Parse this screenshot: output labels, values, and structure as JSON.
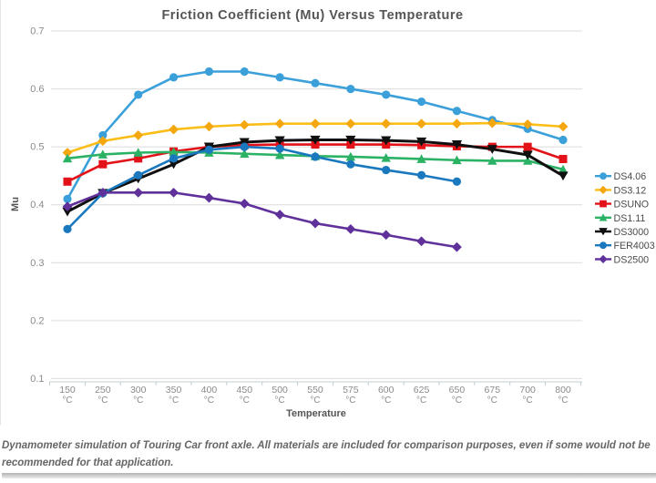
{
  "chart_data": {
    "type": "line",
    "title": "Friction Coefficient (Mu) Versus Temperature",
    "xlabel": "Temperature",
    "ylabel": "Mu",
    "ylim": [
      0.1,
      0.7
    ],
    "yticks": [
      "0.7",
      "0.6",
      "0.5",
      "0.4",
      "0.3",
      "0.2",
      "0.1"
    ],
    "grid": "horizontal",
    "legend_position": "right",
    "categories": [
      "150",
      "250",
      "300",
      "350",
      "400",
      "450",
      "500",
      "550",
      "575",
      "600",
      "625",
      "650",
      "675",
      "700",
      "800"
    ],
    "category_unit": "°C",
    "series": [
      {
        "name": "DS4.06",
        "color": "#3BA0DA",
        "marker": "circle",
        "values": [
          0.41,
          0.52,
          0.59,
          0.62,
          0.63,
          0.63,
          0.62,
          0.61,
          0.6,
          0.59,
          0.578,
          0.562,
          0.546,
          0.531,
          0.512
        ]
      },
      {
        "name": "DS3.12",
        "color": "#FBBE18",
        "marker_color": "#F5A70F",
        "marker": "diamond",
        "values": [
          0.49,
          0.51,
          0.52,
          0.53,
          0.535,
          0.538,
          0.54,
          0.54,
          0.54,
          0.54,
          0.54,
          0.54,
          0.541,
          0.539,
          0.535
        ]
      },
      {
        "name": "DSUNO",
        "color": "#E31219",
        "marker": "square",
        "values": [
          0.44,
          0.47,
          0.48,
          0.492,
          0.5,
          0.503,
          0.504,
          0.504,
          0.504,
          0.504,
          0.503,
          0.501,
          0.5,
          0.5,
          0.479
        ]
      },
      {
        "name": "DS1.11",
        "color": "#2BB265",
        "marker": "triangle-up",
        "values": [
          0.48,
          0.487,
          0.49,
          0.491,
          0.49,
          0.488,
          0.486,
          0.484,
          0.483,
          0.481,
          0.479,
          0.477,
          0.476,
          0.476,
          0.461
        ]
      },
      {
        "name": "DS3000",
        "color": "#101010",
        "marker": "triangle-down",
        "values": [
          0.388,
          0.42,
          0.445,
          0.47,
          0.5,
          0.508,
          0.511,
          0.512,
          0.512,
          0.511,
          0.509,
          0.504,
          0.496,
          0.486,
          0.45
        ]
      },
      {
        "name": "FER4003",
        "color": "#1A78BF",
        "marker": "circle",
        "values": [
          0.358,
          0.42,
          0.451,
          0.48,
          0.495,
          0.5,
          0.497,
          0.483,
          0.47,
          0.46,
          0.451,
          0.44,
          null,
          null,
          null
        ]
      },
      {
        "name": "DS2500",
        "color": "#60309B",
        "marker": "diamond",
        "values": [
          0.397,
          0.421,
          0.421,
          0.421,
          0.412,
          0.402,
          0.383,
          0.368,
          0.358,
          0.348,
          0.337,
          0.327,
          null,
          null,
          null
        ]
      }
    ]
  },
  "caption": "Dynamometer simulation of Touring Car front axle. All materials are included for comparison purposes, even if some would not be recommended for that application.",
  "colors": {
    "title_text": "#555555",
    "axis_title_text": "#555555",
    "tick_label_text": "#8b8b8b",
    "legend_text": "#4a4a4a",
    "caption_text": "#666666",
    "gridline": "#dcdcdc",
    "axis_line": "#c3ccd2"
  }
}
